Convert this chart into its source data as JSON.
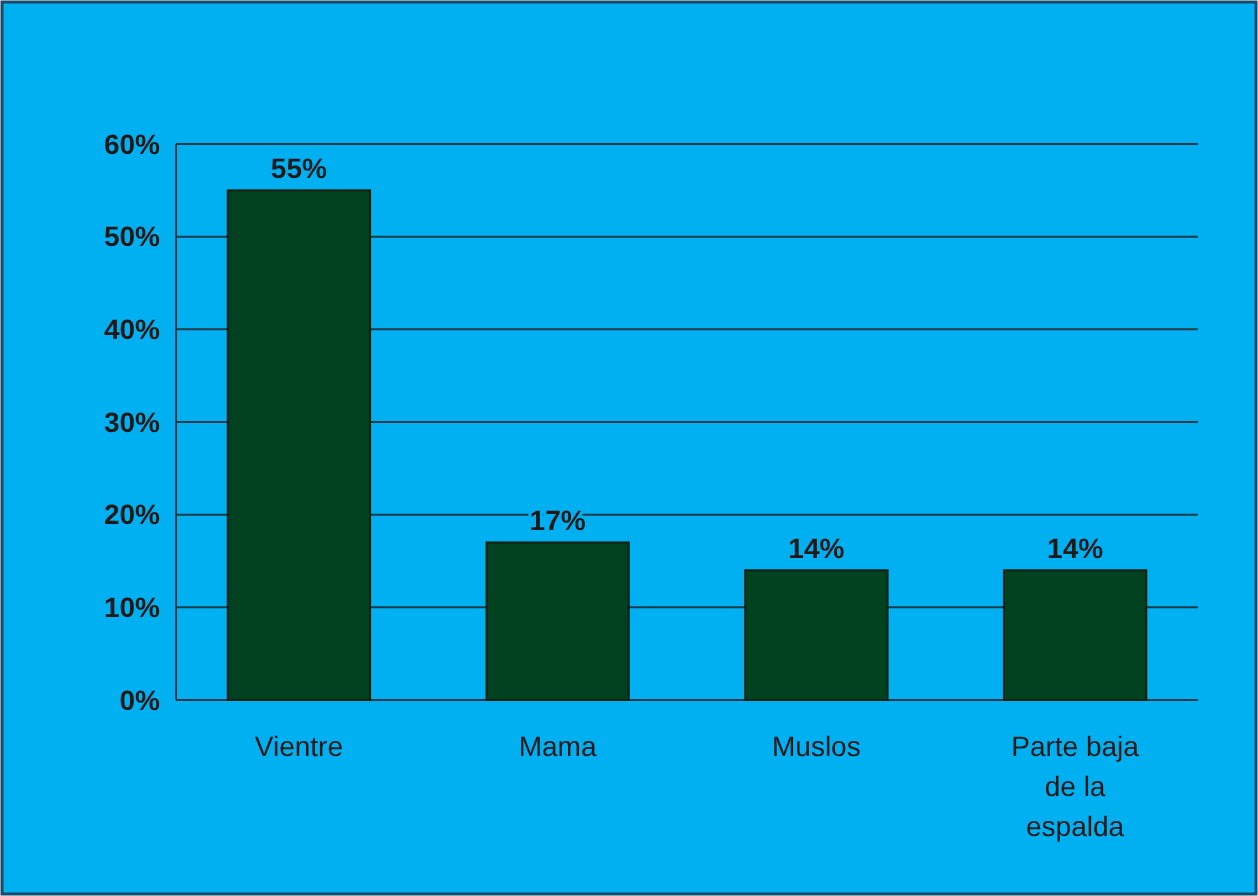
{
  "chart_data": {
    "type": "bar",
    "categories": [
      "Vientre",
      "Mama",
      "Muslos",
      "Parte baja de la espalda"
    ],
    "values": [
      55,
      17,
      14,
      14
    ],
    "color": "#004220",
    "ylim": [
      0,
      60
    ],
    "yticks": [
      {
        "value": 0,
        "label": "0%"
      },
      {
        "value": 10,
        "label": "10%"
      },
      {
        "value": 20,
        "label": "20%"
      },
      {
        "value": 30,
        "label": "30%"
      },
      {
        "value": 40,
        "label": "40%"
      },
      {
        "value": 50,
        "label": "50%"
      },
      {
        "value": 60,
        "label": "60%"
      }
    ],
    "grid": "y",
    "value_labels": [
      "55%",
      "17%",
      "14%",
      "14%"
    ]
  }
}
